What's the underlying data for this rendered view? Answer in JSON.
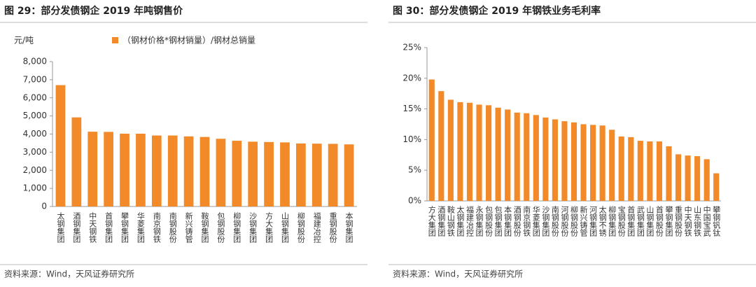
{
  "chart_data": [
    {
      "type": "bar",
      "title": "图 29：部分发债钢企 2019 年吨钢售价",
      "y_label": "元/吨",
      "series": [
        {
          "name": "（钢材价格*钢材销量）/钢材总销量",
          "color": "#f28a2a",
          "values": [
            6700,
            4920,
            4130,
            4120,
            4020,
            4020,
            3920,
            3920,
            3870,
            3840,
            3740,
            3630,
            3580,
            3560,
            3540,
            3480,
            3470,
            3460,
            3430
          ]
        }
      ],
      "categories": [
        "太钢集团",
        "酒钢集团",
        "中天钢铁",
        "首钢集团",
        "攀钢集团",
        "华菱集团",
        "南京钢铁",
        "南钢股份",
        "新兴铸管",
        "鞍钢集团",
        "包钢股份",
        "柳钢集团",
        "沙钢集团",
        "方大集团",
        "山钢集团",
        "柳钢股份",
        "福建冶控",
        "重钢股份",
        "本钢集团"
      ],
      "ylim": [
        0,
        8000
      ],
      "yticks": [
        0,
        {
          "value": 1000,
          "label": "1,000"
        },
        {
          "value": 2000,
          "label": "2,000"
        },
        {
          "value": 3000,
          "label": "3,000"
        },
        {
          "value": 4000,
          "label": "4,000"
        },
        {
          "value": 5000,
          "label": "5,000"
        },
        {
          "value": 6000,
          "label": "6,000"
        },
        {
          "value": 7000,
          "label": "7,000"
        },
        {
          "value": 8000,
          "label": "8,000"
        }
      ],
      "source": "资料来源：Wind，天风证券研究所"
    },
    {
      "type": "bar",
      "title": "图 30：部分发债钢企 2019 年钢铁业务毛利率",
      "series": [
        {
          "color": "#f28a2a",
          "values": [
            19.8,
            17.9,
            16.5,
            16.1,
            16.0,
            15.7,
            15.6,
            15.2,
            14.9,
            14.4,
            14.3,
            14.0,
            13.6,
            13.3,
            13.0,
            12.8,
            12.5,
            12.4,
            12.3,
            11.6,
            10.5,
            10.4,
            9.8,
            9.7,
            9.7,
            8.9,
            7.6,
            7.4,
            7.3,
            6.8,
            4.5
          ]
        }
      ],
      "categories": [
        "方大集团",
        "酒钢集团",
        "鞍山钢铁",
        "太钢集团",
        "福建冶控",
        "永钢集团",
        "包钢股份",
        "包钢集团",
        "本钢集团",
        "酒钢股份",
        "南京钢铁",
        "华菱集团",
        "沙钢集团",
        "南钢股份",
        "河钢股份",
        "柳钢股份",
        "新兴铸管",
        "河钢集团",
        "太钢不锈",
        "柳钢集团",
        "宝钢股份",
        "首钢集团",
        "武钢集团",
        "山钢集团",
        "首钢股份",
        "攀钢集团",
        "重钢股份",
        "中天钢铁",
        "山东钢铁",
        "中国宝武",
        "攀钢钒钛"
      ],
      "ylim": [
        0,
        25
      ],
      "yticks": [
        {
          "value": 0,
          "label": "0%"
        },
        {
          "value": 5,
          "label": "5%"
        },
        {
          "value": 10,
          "label": "10%"
        },
        {
          "value": 15,
          "label": "15%"
        },
        {
          "value": 20,
          "label": "20%"
        },
        {
          "value": 25,
          "label": "25%"
        }
      ],
      "source": "资料来源：Wind，天风证券研究所"
    }
  ]
}
